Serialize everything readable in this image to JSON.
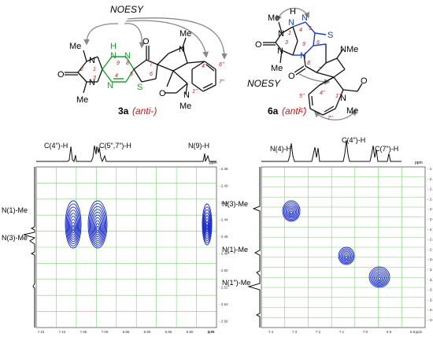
{
  "top": {
    "left": {
      "noesy_label": "NOESY",
      "compound_number": "3a",
      "compound_config": "(anti-)",
      "atoms": {
        "me1": "Me",
        "me2": "Me",
        "me3": "Me",
        "me4": "Me",
        "n1": "N",
        "n3": "N",
        "n4": "N",
        "n9": "N",
        "n8": "N",
        "nMe": "N",
        "n1pp": "N",
        "h_n9": "H",
        "o_left": "O",
        "o_top": "O",
        "o_low": "O",
        "s": "S",
        "num1": "1",
        "num2": "2",
        "num3": "3",
        "num4": "4",
        "num5": "5",
        "num6": "6",
        "num7": "7",
        "num8": "8",
        "num9": "9",
        "num4pp": "4''",
        "num6pp": "6''",
        "num7pp": "7''",
        "num1pp": "1''"
      },
      "colors": {
        "ring": "#1a9f2a",
        "number": "#c0191c",
        "bond": "#111111"
      }
    },
    "right": {
      "noesy_label": "NOESY",
      "compound_number": "6a",
      "compound_config": "(anti-)",
      "atoms": {
        "me1": "Me",
        "me2": "Me",
        "me3": "Me",
        "me4": "Me",
        "n1": "N",
        "n3": "N",
        "n4": "N",
        "n4b": "N",
        "n7": "N",
        "nMe": "N",
        "n1pp": "N",
        "h": "H",
        "o_left": "O",
        "o_low": "O",
        "o_ox": "O",
        "s": "S",
        "num1": "1",
        "num3": "3",
        "num4": "4",
        "num5": "5",
        "num6": "6",
        "num7": "7",
        "num8": "8",
        "num9": "9",
        "num4pp": "4''",
        "num5pp": "5''",
        "num6pp": "6''",
        "num7pp": "7''",
        "num1pp": "1''"
      },
      "colors": {
        "ring": "#1f3fb8",
        "number": "#c0191c",
        "bond": "#111111"
      }
    }
  },
  "spectra": [
    {
      "top_peak_labels": [
        "C(4\")-H",
        "C(5\",7\")-H",
        "N(9)-H"
      ],
      "ppm_axis_label": "ppm",
      "left_labels": [
        "N(1)-Me",
        "N(3)-Me"
      ],
      "x_ticks": [
        "7.15",
        "7.10",
        "7.05",
        "7.00",
        "6.95",
        "6.90",
        "6.85",
        "6.80",
        "6.75",
        "ppm"
      ],
      "y_ticks": [
        "2.38",
        "2.40",
        "2.42",
        "2.44",
        "2.46",
        "2.48",
        "2.50",
        "2.52",
        "2.54",
        "2.56"
      ],
      "colors": {
        "contour": "#1a2ac8",
        "grid": "#7ccf76"
      }
    },
    {
      "top_peak_labels": [
        "C(4\")-H",
        "N(4)-H",
        "C(7\")-H"
      ],
      "ppm_axis_label": "ppm",
      "left_labels": [
        "N(3)-Me",
        "N(1)-Me",
        "N(1\")-Me"
      ],
      "x_ticks": [
        "7.4",
        "7.3",
        "7.2",
        "7.1",
        "7.0",
        "6.9",
        "6.8",
        "ppm"
      ],
      "y_ticks": [
        "2.1",
        "2.2",
        "2.3",
        "2.4",
        "2.5",
        "2.6",
        "2.7",
        "2.8",
        "2.9",
        "3.0",
        "3.1",
        "3.2",
        "3.3",
        "3.4",
        "3.5",
        "3.6"
      ],
      "colors": {
        "contour": "#1a2ac8",
        "grid": "#7ccf76"
      }
    }
  ]
}
